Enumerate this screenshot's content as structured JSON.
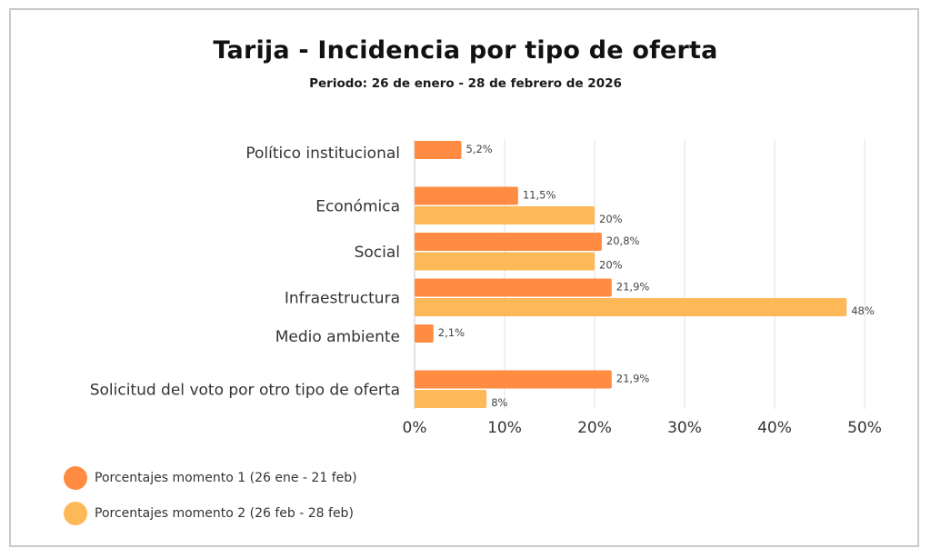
{
  "chart_data": {
    "type": "bar",
    "orientation": "horizontal",
    "title": "Tarija - Incidencia por tipo de oferta",
    "subtitle": "Periodo: 26 de enero - 28 de febrero de 2026",
    "xlabel": "",
    "ylabel": "",
    "xlim": [
      0,
      50
    ],
    "x_ticks": [
      0,
      10,
      20,
      30,
      40,
      50
    ],
    "x_tick_labels": [
      "0%",
      "10%",
      "20%",
      "30%",
      "40%",
      "50%"
    ],
    "grid": "vertical",
    "legend_position": "bottom-left",
    "categories": [
      "Político institucional",
      "Económica",
      "Social",
      "Infraestructura",
      "Medio ambiente",
      "Solicitud del voto por otro tipo de oferta"
    ],
    "series": [
      {
        "name": "Porcentajes momento 1 (26 ene - 21 feb)",
        "color": "#FF8C42",
        "values": [
          5.2,
          11.5,
          20.8,
          21.9,
          2.1,
          21.9
        ],
        "labels": [
          "5,2%",
          "11,5%",
          "20,8%",
          "21,9%",
          "2,1%",
          "21,9%"
        ]
      },
      {
        "name": "Porcentajes momento 2 (26 feb - 28 feb)",
        "color": "#FDB857",
        "values": [
          null,
          20,
          20,
          48,
          null,
          8
        ],
        "labels": [
          null,
          "20%",
          "20%",
          "48%",
          null,
          "8%"
        ]
      }
    ]
  },
  "colors": {
    "gridline": "#e6e6e6",
    "axis": "#cfcfcf",
    "frame": "#c9c9c9"
  }
}
